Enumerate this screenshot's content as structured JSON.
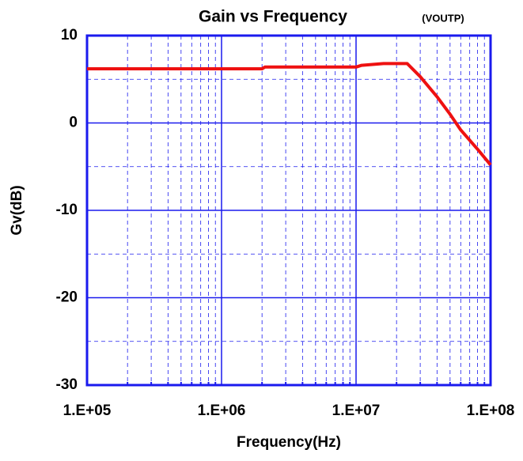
{
  "chart_data": {
    "type": "line",
    "title": "Gain vs Frequency",
    "subtitle": "(VOUTP)",
    "xlabel": "Frequency(Hz)",
    "ylabel": "Gv(dB)",
    "xscale": "log",
    "grid": true,
    "xlim": [
      100000,
      100000000
    ],
    "ylim": [
      -30,
      10
    ],
    "xticks": [
      {
        "value": 100000,
        "label": "1.E+05"
      },
      {
        "value": 1000000,
        "label": "1.E+06"
      },
      {
        "value": 10000000,
        "label": "1.E+07"
      },
      {
        "value": 100000000,
        "label": "1.E+08"
      }
    ],
    "yticks": [
      -30,
      -20,
      -10,
      0,
      10
    ],
    "xminor": [
      200000,
      300000,
      400000,
      500000,
      600000,
      700000,
      800000,
      900000,
      2000000,
      3000000,
      4000000,
      5000000,
      6000000,
      7000000,
      8000000,
      9000000,
      20000000,
      30000000,
      40000000,
      50000000,
      60000000,
      70000000,
      80000000,
      90000000
    ],
    "yminor": [
      -25,
      -15,
      -5,
      5
    ],
    "x": [
      100000,
      2000000,
      2100000,
      10000000,
      11000000,
      16000000,
      24000000,
      30000000,
      40000000,
      50000000,
      60000000,
      80000000,
      100000000
    ],
    "series": [
      {
        "color": "#ee1111",
        "values": [
          6.2,
          6.2,
          6.4,
          6.4,
          6.6,
          6.8,
          6.8,
          5.3,
          3,
          1,
          -0.8,
          -3,
          -4.8
        ]
      }
    ]
  }
}
